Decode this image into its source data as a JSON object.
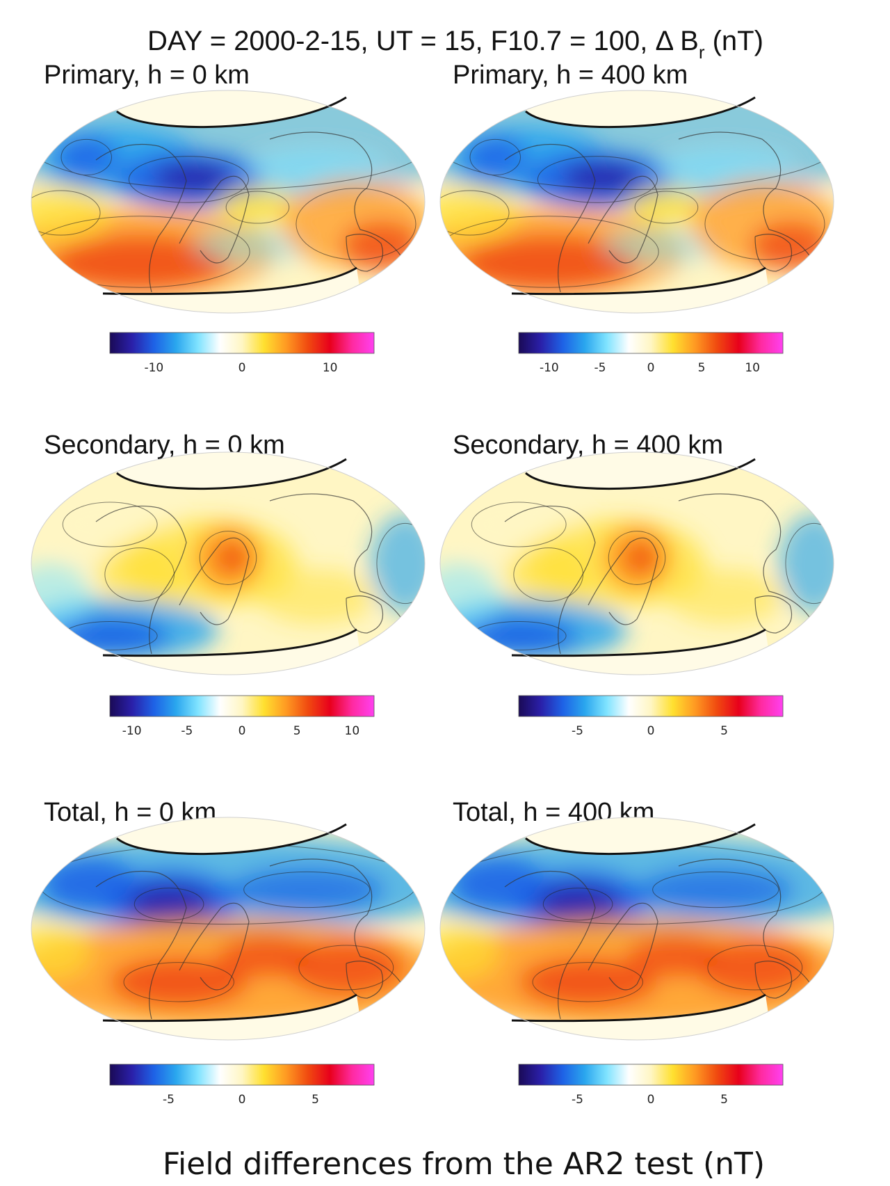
{
  "figure": {
    "title_prefix": "DAY = 2000-2-15, UT = 15, F10.7 = 100, ",
    "title_symbol": "Δ B",
    "title_subscript": "r",
    "title_unit": " (nT)",
    "caption": "Field differences from the AR2 test (nT)"
  },
  "colors": {
    "colormap": [
      "#1a0a56",
      "#2a1fa8",
      "#1e62e6",
      "#2aa6ee",
      "#7fe3ff",
      "#ffffff",
      "#fff6c4",
      "#ffe030",
      "#ff9a22",
      "#f04a10",
      "#e8001c",
      "#ff2aa0",
      "#ff40f0"
    ]
  },
  "chart_data": [
    {
      "type": "heatmap",
      "title": "Primary, h = 0 km",
      "projection": "ellipse",
      "pattern": "primary",
      "colorbar": {
        "ticks": [
          -10,
          0,
          10
        ],
        "range": [
          -15,
          15
        ]
      }
    },
    {
      "type": "heatmap",
      "title": "Primary, h = 400 km",
      "projection": "ellipse",
      "pattern": "primary",
      "colorbar": {
        "ticks": [
          -10,
          -5,
          0,
          5,
          10
        ],
        "range": [
          -13,
          13
        ]
      }
    },
    {
      "type": "heatmap",
      "title": "Secondary, h = 0 km",
      "projection": "ellipse",
      "pattern": "secondary",
      "colorbar": {
        "ticks": [
          -10,
          -5,
          0,
          5,
          10
        ],
        "range": [
          -12,
          12
        ]
      }
    },
    {
      "type": "heatmap",
      "title": "Secondary, h = 400 km",
      "projection": "ellipse",
      "pattern": "secondary",
      "colorbar": {
        "ticks": [
          -5,
          0,
          5
        ],
        "range": [
          -9,
          9
        ]
      }
    },
    {
      "type": "heatmap",
      "title": "Total, h = 0 km",
      "projection": "ellipse",
      "pattern": "total",
      "colorbar": {
        "ticks": [
          -5,
          0,
          5
        ],
        "range": [
          -9,
          9
        ]
      }
    },
    {
      "type": "heatmap",
      "title": "Total, h = 400 km",
      "projection": "ellipse",
      "pattern": "total",
      "colorbar": {
        "ticks": [
          -5,
          0,
          5
        ],
        "range": [
          -9,
          9
        ]
      }
    }
  ]
}
